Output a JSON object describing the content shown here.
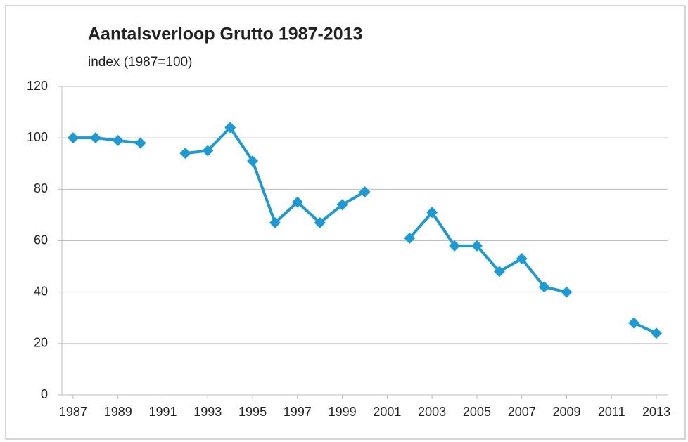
{
  "chart_data": {
    "type": "line",
    "title": "Aantalsverloop Grutto 1987-2013",
    "subtitle": "index (1987=100)",
    "x": [
      1987,
      1988,
      1989,
      1990,
      1991,
      1992,
      1993,
      1994,
      1995,
      1996,
      1997,
      1998,
      1999,
      2000,
      2001,
      2002,
      2003,
      2004,
      2005,
      2006,
      2007,
      2008,
      2009,
      2010,
      2011,
      2012,
      2013
    ],
    "values": [
      100,
      100,
      99,
      98,
      null,
      94,
      95,
      104,
      91,
      67,
      75,
      67,
      74,
      79,
      null,
      61,
      71,
      58,
      58,
      48,
      53,
      42,
      40,
      null,
      null,
      28,
      24
    ],
    "color": "#1a9ad6",
    "xlim": [
      1986.5,
      2013.5
    ],
    "xticks": [
      1987,
      1989,
      1991,
      1993,
      1995,
      1997,
      1999,
      2001,
      2003,
      2005,
      2007,
      2009,
      2011,
      2013
    ],
    "ylim": [
      0,
      120
    ],
    "yticks": [
      0,
      20,
      40,
      60,
      80,
      100,
      120
    ],
    "grid": true
  }
}
